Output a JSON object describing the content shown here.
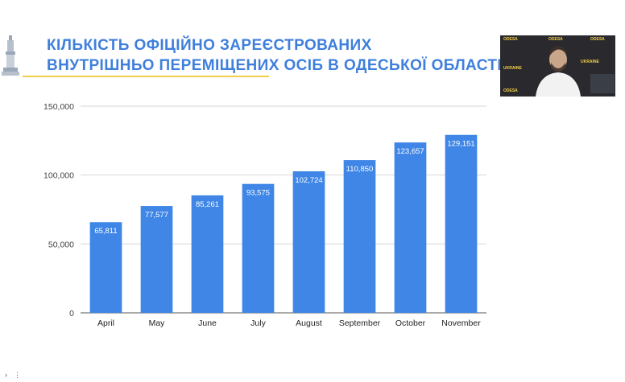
{
  "header": {
    "title_line1": "Кількість офіційно зареєстрованих",
    "title_line2": "внутрішньо переміщених осіб в Одеської області"
  },
  "webcam": {
    "backdrop_words": [
      "ODESA",
      "ODESA",
      "ODESA",
      "UKRAINE",
      "UKRAINE",
      "ODESA"
    ]
  },
  "colors": {
    "title": "#3f7fdc",
    "bar": "#3f86e6",
    "rule": "#f2cf4a"
  },
  "chart_data": {
    "type": "bar",
    "categories": [
      "April",
      "May",
      "June",
      "July",
      "August",
      "September",
      "October",
      "November"
    ],
    "values": [
      65811,
      77577,
      85261,
      93575,
      102724,
      110850,
      123657,
      129151
    ],
    "value_labels": [
      "65,811",
      "77,577",
      "85,261",
      "93,575",
      "102,724",
      "110,850",
      "123,657",
      "129,151"
    ],
    "yticks": [
      0,
      50000,
      100000,
      150000
    ],
    "ytick_labels": [
      "0",
      "50,000",
      "100,000",
      "150,000"
    ],
    "ylim": [
      0,
      150000
    ],
    "grid": true,
    "legend": "none",
    "title": "",
    "xlabel": "",
    "ylabel": ""
  },
  "controls": {
    "left_glyph": "›",
    "right_glyph": "⋮"
  }
}
